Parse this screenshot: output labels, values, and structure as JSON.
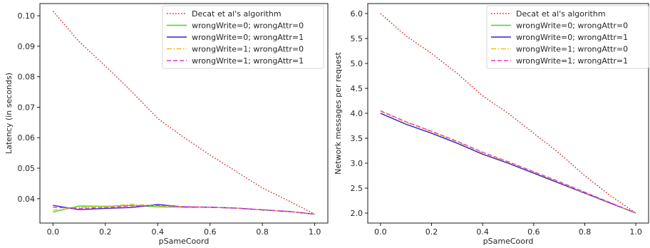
{
  "colors": {
    "decat": "#d62728",
    "w0a0": "#4fd322",
    "w0a1": "#3a1fd8",
    "w1a0": "#e8c21a",
    "w1a1": "#e83ad0",
    "axis": "#000000",
    "text": "#262626"
  },
  "chart_data": [
    {
      "type": "line",
      "title": "",
      "xlabel": "pSameCoord",
      "ylabel": "Latency (in seconds)",
      "xlim": [
        -0.05,
        1.05
      ],
      "ylim": [
        0.032,
        0.104
      ],
      "x_ticks": [
        0.0,
        0.2,
        0.4,
        0.6,
        0.8,
        1.0
      ],
      "x_tick_labels": [
        "0.0",
        "0.2",
        "0.4",
        "0.6",
        "0.8",
        "1.0"
      ],
      "y_ticks": [
        0.04,
        0.05,
        0.06,
        0.07,
        0.08,
        0.09,
        0.1
      ],
      "y_tick_labels": [
        "0.04",
        "0.05",
        "0.06",
        "0.07",
        "0.08",
        "0.09",
        "0.10"
      ],
      "grid": false,
      "legend": "top-right",
      "x": [
        0.0,
        0.1,
        0.2,
        0.3,
        0.4,
        0.5,
        0.6,
        0.7,
        0.8,
        0.9,
        1.0
      ],
      "series": [
        {
          "name": "Decat et al's algorithm",
          "style": "dotted",
          "color_key": "decat",
          "values": [
            0.1015,
            0.0915,
            0.0835,
            0.0752,
            0.0663,
            0.0601,
            0.0543,
            0.0489,
            0.0435,
            0.0393,
            0.0349
          ]
        },
        {
          "name": "wrongWrite=0; wrongAttr=0",
          "style": "solid",
          "color_key": "w0a0",
          "values": [
            0.0356,
            0.0376,
            0.0375,
            0.0378,
            0.0373,
            0.0372,
            0.0372,
            0.0369,
            0.0363,
            0.0358,
            0.0349
          ]
        },
        {
          "name": "wrongWrite=0; wrongAttr=1",
          "style": "solid",
          "color_key": "w0a1",
          "values": [
            0.0378,
            0.0364,
            0.0368,
            0.0371,
            0.0381,
            0.0373,
            0.0372,
            0.0369,
            0.0363,
            0.0358,
            0.0349
          ]
        },
        {
          "name": "wrongWrite=1; wrongAttr=0",
          "style": "dashdot",
          "color_key": "w1a0",
          "values": [
            0.0362,
            0.0372,
            0.0374,
            0.0382,
            0.0376,
            0.0374,
            0.0372,
            0.0369,
            0.0363,
            0.0358,
            0.0349
          ]
        },
        {
          "name": "wrongWrite=1; wrongAttr=1",
          "style": "dashed",
          "color_key": "w1a1",
          "values": [
            0.0372,
            0.0368,
            0.0371,
            0.0376,
            0.0378,
            0.0374,
            0.0372,
            0.0369,
            0.0364,
            0.0358,
            0.0349
          ]
        }
      ]
    },
    {
      "type": "line",
      "title": "",
      "xlabel": "pSameCoord",
      "ylabel": "Network messages per request",
      "xlim": [
        -0.05,
        1.05
      ],
      "ylim": [
        1.8,
        6.2
      ],
      "x_ticks": [
        0.0,
        0.2,
        0.4,
        0.6,
        0.8,
        1.0
      ],
      "x_tick_labels": [
        "0.0",
        "0.2",
        "0.4",
        "0.6",
        "0.8",
        "1.0"
      ],
      "y_ticks": [
        2.0,
        2.5,
        3.0,
        3.5,
        4.0,
        4.5,
        5.0,
        5.5,
        6.0
      ],
      "y_tick_labels": [
        "2.0",
        "2.5",
        "3.0",
        "3.5",
        "4.0",
        "4.5",
        "5.0",
        "5.5",
        "6.0"
      ],
      "grid": false,
      "legend": "top-right",
      "x": [
        0.0,
        0.1,
        0.2,
        0.3,
        0.4,
        0.5,
        0.6,
        0.7,
        0.8,
        0.9,
        1.0
      ],
      "series": [
        {
          "name": "Decat et al's algorithm",
          "style": "dotted",
          "color_key": "decat",
          "values": [
            6.0,
            5.55,
            5.2,
            4.8,
            4.35,
            4.0,
            3.6,
            3.2,
            2.75,
            2.35,
            2.0
          ]
        },
        {
          "name": "wrongWrite=0; wrongAttr=0",
          "style": "solid",
          "color_key": "w0a0",
          "values": [
            4.0,
            3.78,
            3.6,
            3.4,
            3.18,
            3.0,
            2.8,
            2.6,
            2.4,
            2.2,
            2.0
          ]
        },
        {
          "name": "wrongWrite=0; wrongAttr=1",
          "style": "solid",
          "color_key": "w0a1",
          "values": [
            4.0,
            3.78,
            3.6,
            3.4,
            3.18,
            3.0,
            2.8,
            2.6,
            2.4,
            2.2,
            2.0
          ]
        },
        {
          "name": "wrongWrite=1; wrongAttr=0",
          "style": "dashdot",
          "color_key": "w1a0",
          "values": [
            4.04,
            3.82,
            3.63,
            3.43,
            3.21,
            3.02,
            2.82,
            2.62,
            2.41,
            2.21,
            2.0
          ]
        },
        {
          "name": "wrongWrite=1; wrongAttr=1",
          "style": "dashed",
          "color_key": "w1a1",
          "values": [
            4.05,
            3.83,
            3.64,
            3.44,
            3.22,
            3.03,
            2.83,
            2.63,
            2.42,
            2.21,
            2.0
          ]
        }
      ]
    }
  ]
}
